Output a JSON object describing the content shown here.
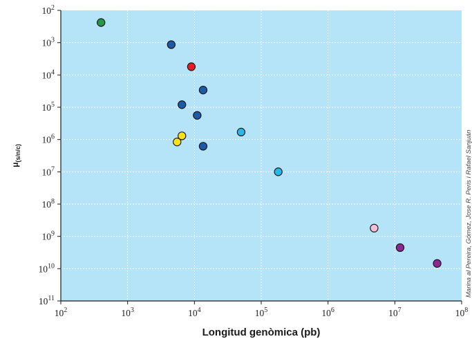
{
  "chart_data": {
    "type": "scatter",
    "xlabel": "Longitud genòmica (pb)",
    "ylabel": {
      "base": "μ",
      "sub": "(s/n/c)"
    },
    "x_scale": "log",
    "y_scale": "log",
    "xlim": [
      100,
      100000000
    ],
    "ylim": [
      1e-11,
      0.01
    ],
    "y_axis_inverted_top_to_bottom": true,
    "x_ticks": [
      {
        "value": 100,
        "base": "10",
        "exp": "2"
      },
      {
        "value": 1000,
        "base": "10",
        "exp": "3"
      },
      {
        "value": 10000,
        "base": "10",
        "exp": "4"
      },
      {
        "value": 100000,
        "base": "10",
        "exp": "5"
      },
      {
        "value": 1000000,
        "base": "10",
        "exp": "6"
      },
      {
        "value": 10000000,
        "base": "10",
        "exp": "7"
      },
      {
        "value": 100000000,
        "base": "10",
        "exp": "8"
      }
    ],
    "y_ticks": [
      {
        "value": 0.01,
        "base": "10",
        "exp": "2"
      },
      {
        "value": 0.001,
        "base": "10",
        "exp": "3"
      },
      {
        "value": 0.0001,
        "base": "10",
        "exp": "4"
      },
      {
        "value": 1e-05,
        "base": "10",
        "exp": "5"
      },
      {
        "value": 1e-06,
        "base": "10",
        "exp": "6"
      },
      {
        "value": 1e-07,
        "base": "10",
        "exp": "7"
      },
      {
        "value": 1e-08,
        "base": "10",
        "exp": "8"
      },
      {
        "value": 1e-09,
        "base": "10",
        "exp": "9"
      },
      {
        "value": 1e-10,
        "base": "10",
        "exp": "10"
      },
      {
        "value": 1e-11,
        "base": "10",
        "exp": "11"
      }
    ],
    "grid": true,
    "background_color": "#b5e3f7",
    "gridline_color": "#ffffff",
    "points": [
      {
        "x": 400,
        "y": 0.0042,
        "color": "#1f9a4c"
      },
      {
        "x": 4500,
        "y": 0.00087,
        "color": "#1a5aa8"
      },
      {
        "x": 9000,
        "y": 0.00018,
        "color": "#e41e24"
      },
      {
        "x": 13500,
        "y": 3.4e-05,
        "color": "#1a5aa8"
      },
      {
        "x": 11000,
        "y": 5.6e-06,
        "color": "#1a5aa8"
      },
      {
        "x": 6500,
        "y": 1.2e-05,
        "color": "#1a5aa8"
      },
      {
        "x": 13500,
        "y": 6.2e-07,
        "color": "#1a5aa8"
      },
      {
        "x": 5500,
        "y": 8.4e-07,
        "color": "#f6e21b"
      },
      {
        "x": 6500,
        "y": 1.3e-06,
        "color": "#f6e21b"
      },
      {
        "x": 50000,
        "y": 1.7e-06,
        "color": "#29b6e8"
      },
      {
        "x": 180000,
        "y": 1e-07,
        "color": "#29b6e8"
      },
      {
        "x": 4900000,
        "y": 1.8e-09,
        "color": "#f6bfd8"
      },
      {
        "x": 12000000,
        "y": 4.5e-10,
        "color": "#8a2a90"
      },
      {
        "x": 43000000,
        "y": 1.45e-10,
        "color": "#8a2a90"
      }
    ],
    "credit": "Marina al Pereira, Gómez, Jose R. Peris i Rafael Sanjuán"
  }
}
